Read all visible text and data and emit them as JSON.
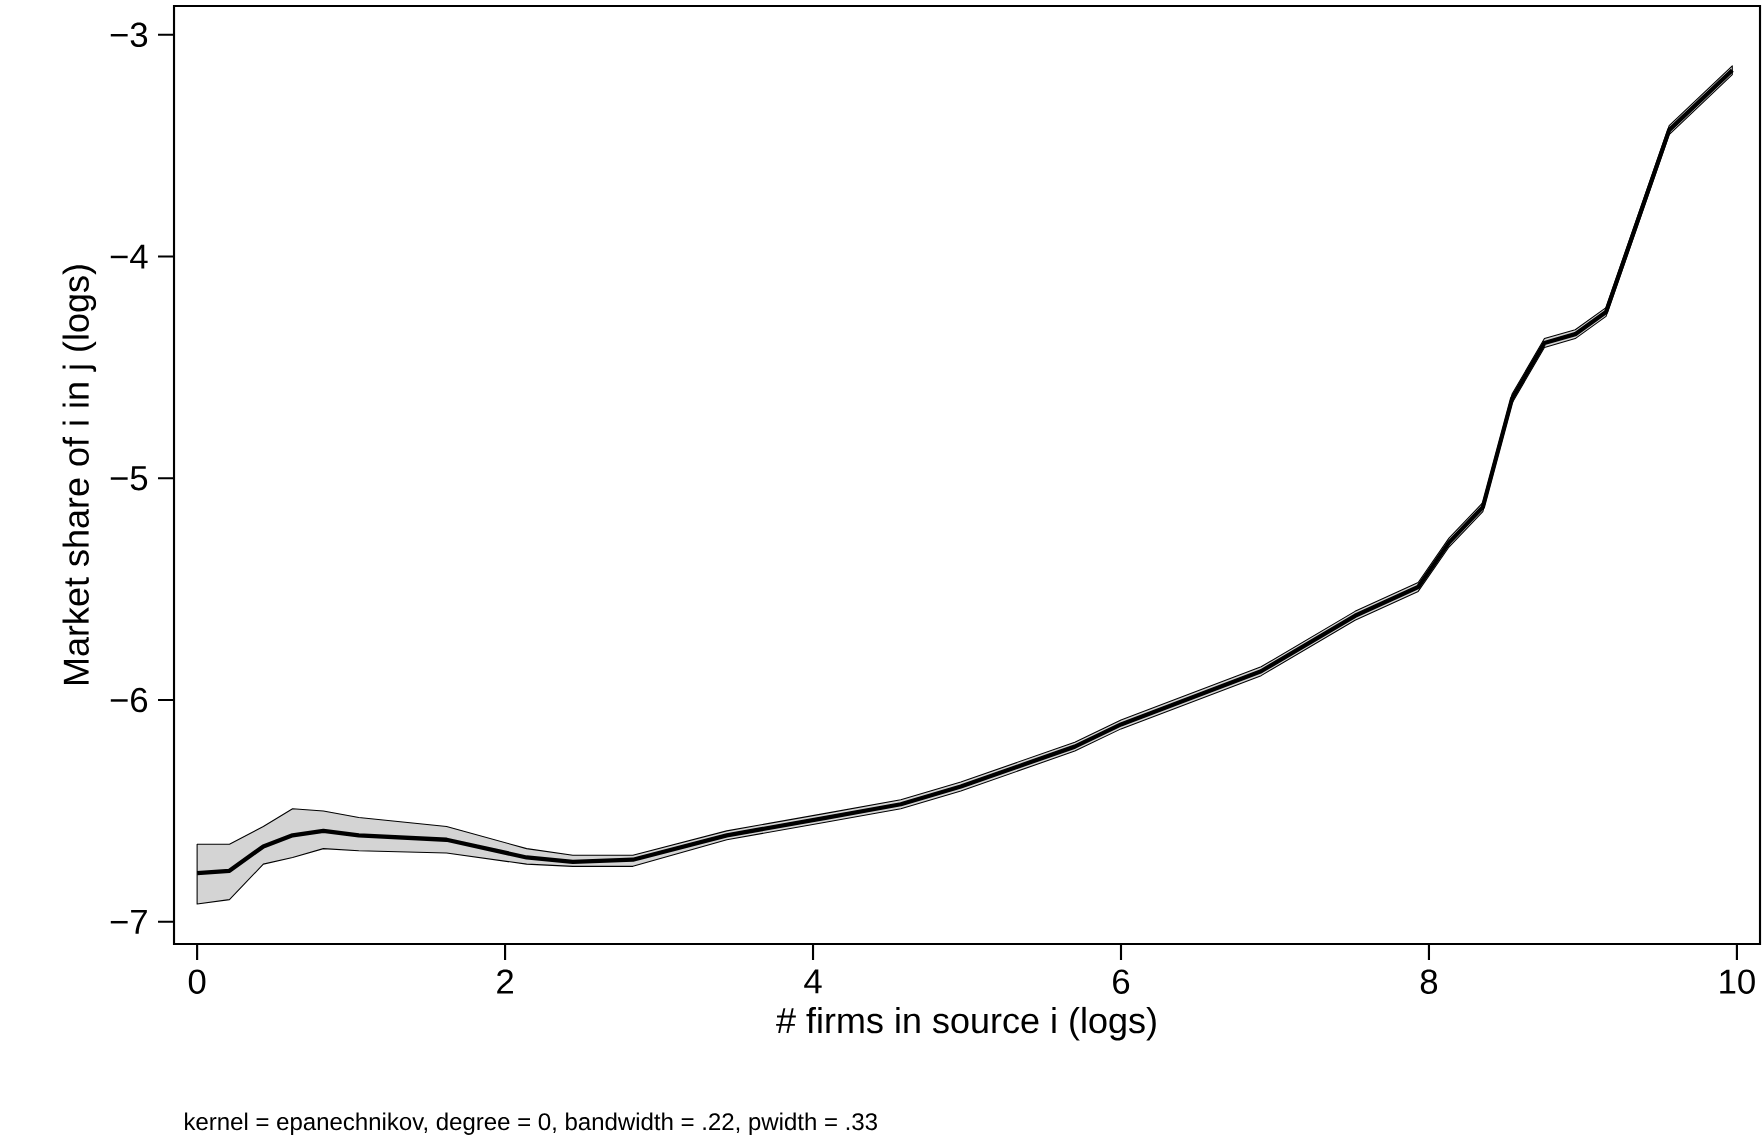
{
  "chart_data": {
    "type": "line",
    "xlabel": "# firms in source i (logs)",
    "ylabel": "Market share of i in j (logs)",
    "annotations": [
      "kernel = epanechnikov, degree = 0, bandwidth = .22, pwidth = .33"
    ],
    "xlim": [
      -0.15,
      10.15
    ],
    "ylim": [
      -7.1,
      -2.87
    ],
    "xticks": [
      0,
      2,
      4,
      6,
      8,
      10
    ],
    "yticks": [
      {
        "value": -7,
        "label": "−7"
      },
      {
        "value": -6,
        "label": "−6"
      },
      {
        "value": -5,
        "label": "−5"
      },
      {
        "value": -4,
        "label": "−4"
      },
      {
        "value": -3,
        "label": "−3"
      }
    ],
    "grid": false,
    "marker": "none",
    "line_style": "solid",
    "series": [
      {
        "color": "#000000",
        "x": [
          0,
          0.21,
          0.43,
          0.62,
          0.82,
          1.05,
          1.62,
          2.14,
          2.44,
          2.83,
          3.44,
          4.09,
          4.57,
          4.96,
          5.7,
          6.0,
          6.91,
          7.52,
          7.93,
          8.13,
          8.35,
          8.54,
          8.75,
          8.95,
          9.15,
          9.56,
          9.97
        ],
        "values": [
          -6.78,
          -6.77,
          -6.66,
          -6.61,
          -6.59,
          -6.61,
          -6.63,
          -6.71,
          -6.73,
          -6.72,
          -6.61,
          -6.53,
          -6.47,
          -6.39,
          -6.21,
          -6.11,
          -5.87,
          -5.62,
          -5.49,
          -5.29,
          -5.13,
          -4.64,
          -4.39,
          -4.35,
          -4.25,
          -3.43,
          -3.16
        ],
        "lower": [
          -6.92,
          -6.9,
          -6.74,
          -6.71,
          -6.67,
          -6.68,
          -6.69,
          -6.74,
          -6.75,
          -6.75,
          -6.63,
          -6.55,
          -6.49,
          -6.41,
          -6.23,
          -6.13,
          -5.89,
          -5.64,
          -5.51,
          -5.31,
          -5.15,
          -4.66,
          -4.41,
          -4.37,
          -4.27,
          -3.45,
          -3.18
        ],
        "upper": [
          -6.65,
          -6.65,
          -6.57,
          -6.49,
          -6.5,
          -6.53,
          -6.57,
          -6.67,
          -6.7,
          -6.7,
          -6.59,
          -6.51,
          -6.45,
          -6.37,
          -6.19,
          -6.09,
          -5.85,
          -5.6,
          -5.47,
          -5.27,
          -5.11,
          -4.62,
          -4.37,
          -4.33,
          -4.23,
          -3.41,
          -3.14
        ]
      }
    ]
  }
}
